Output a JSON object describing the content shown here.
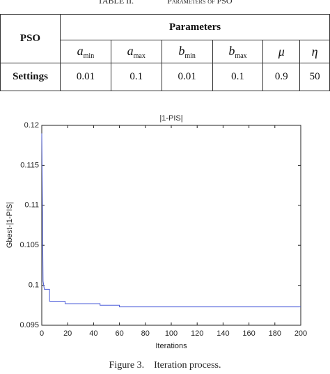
{
  "table": {
    "caption": [
      "TABLE II.",
      "Parameters of PSO"
    ],
    "row_header": "PSO",
    "group_header": "Parameters",
    "columns": [
      {
        "symbol": "a",
        "sub": "min"
      },
      {
        "symbol": "a",
        "sub": "max"
      },
      {
        "symbol": "b",
        "sub": "min"
      },
      {
        "symbol": "b",
        "sub": "max"
      },
      {
        "symbol": "μ"
      },
      {
        "symbol": "η"
      }
    ],
    "row_label": "Settings",
    "values": [
      0.01,
      0.1,
      0.01,
      0.1,
      0.9,
      50
    ]
  },
  "chart_data": {
    "type": "line",
    "title": "|1-PIS|",
    "x_label": "Iterations",
    "y_label": "Gbest-|1-PIS|",
    "x": [
      0,
      1,
      2,
      6,
      6,
      18,
      18,
      45,
      45,
      60,
      60,
      200
    ],
    "values": [
      0.119,
      0.1005,
      0.0995,
      0.0995,
      0.098,
      0.098,
      0.0977,
      0.0977,
      0.0975,
      0.0975,
      0.0973,
      0.0973
    ],
    "color": "#4a5bd9",
    "xlim": [
      0,
      200
    ],
    "xticks": [
      0,
      20,
      40,
      60,
      80,
      100,
      120,
      140,
      160,
      180,
      200
    ],
    "ylim": [
      0.095,
      0.12
    ],
    "yticks": [
      0.095,
      0.1,
      0.105,
      0.11,
      0.115,
      0.12
    ],
    "grid": false
  },
  "figure_caption": "Figure 3.    Iteration process."
}
